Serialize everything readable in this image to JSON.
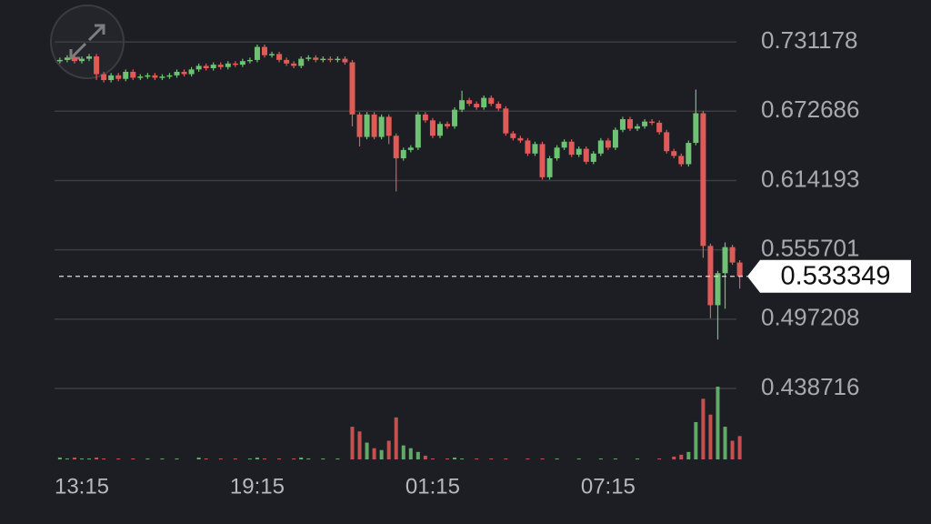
{
  "chart_data": {
    "type": "candlestick",
    "categories": [
      null,
      null,
      null,
      "13:15",
      null,
      null,
      null,
      null,
      null,
      null,
      null,
      null,
      null,
      null,
      null,
      null,
      null,
      null,
      null,
      null,
      null,
      null,
      null,
      null,
      null,
      null,
      null,
      "19:15",
      null,
      null,
      null,
      null,
      null,
      null,
      null,
      null,
      null,
      null,
      null,
      null,
      null,
      null,
      null,
      null,
      null,
      null,
      null,
      null,
      null,
      null,
      null,
      "01:15",
      null,
      null,
      null,
      null,
      null,
      null,
      null,
      null,
      null,
      null,
      null,
      null,
      null,
      null,
      null,
      null,
      null,
      null,
      null,
      null,
      null,
      null,
      null,
      "07:15",
      null,
      null,
      null,
      null,
      null,
      null,
      null,
      null,
      null,
      null,
      null,
      null,
      null,
      null,
      null,
      null,
      null,
      null
    ],
    "open": [
      0.715,
      0.716,
      0.718,
      0.715,
      0.717,
      0.719,
      0.704,
      0.699,
      0.703,
      0.7,
      0.706,
      0.701,
      0.702,
      0.703,
      0.701,
      0.702,
      0.703,
      0.706,
      0.704,
      0.708,
      0.711,
      0.709,
      0.712,
      0.71,
      0.713,
      0.712,
      0.715,
      0.716,
      0.727,
      0.72,
      0.721,
      0.716,
      0.713,
      0.711,
      0.717,
      0.718,
      0.716,
      0.717,
      0.716,
      0.717,
      0.714,
      0.67,
      0.651,
      0.67,
      0.651,
      0.668,
      0.652,
      0.633,
      0.64,
      0.642,
      0.67,
      0.665,
      0.652,
      0.662,
      0.66,
      0.674,
      0.682,
      0.679,
      0.676,
      0.684,
      0.679,
      0.675,
      0.654,
      0.65,
      0.648,
      0.637,
      0.645,
      0.617,
      0.633,
      0.642,
      0.647,
      0.636,
      0.641,
      0.63,
      0.637,
      0.648,
      0.642,
      0.657,
      0.666,
      0.658,
      0.66,
      0.664,
      0.663,
      0.655,
      0.639,
      0.635,
      0.628,
      0.646,
      0.671,
      0.559,
      0.509,
      0.536,
      0.558,
      0.545
    ],
    "high": [
      0.718,
      0.72,
      0.72,
      0.719,
      0.721,
      0.721,
      0.706,
      0.705,
      0.705,
      0.708,
      0.708,
      0.704,
      0.705,
      0.705,
      0.704,
      0.705,
      0.708,
      0.708,
      0.71,
      0.713,
      0.713,
      0.714,
      0.714,
      0.715,
      0.715,
      0.717,
      0.718,
      0.729,
      0.729,
      0.723,
      0.723,
      0.718,
      0.715,
      0.719,
      0.72,
      0.72,
      0.719,
      0.719,
      0.719,
      0.719,
      0.716,
      0.672,
      0.672,
      0.672,
      0.67,
      0.67,
      0.654,
      0.642,
      0.644,
      0.672,
      0.672,
      0.667,
      0.664,
      0.664,
      0.676,
      0.69,
      0.684,
      0.681,
      0.686,
      0.686,
      0.681,
      0.677,
      0.656,
      0.652,
      0.65,
      0.647,
      0.647,
      0.635,
      0.644,
      0.649,
      0.649,
      0.643,
      0.643,
      0.639,
      0.65,
      0.65,
      0.659,
      0.668,
      0.668,
      0.662,
      0.666,
      0.666,
      0.665,
      0.657,
      0.641,
      0.637,
      0.648,
      0.691,
      0.673,
      0.561,
      0.538,
      0.562,
      0.56,
      0.547
    ],
    "low": [
      0.713,
      0.714,
      0.713,
      0.713,
      0.715,
      0.699,
      0.697,
      0.697,
      0.698,
      0.698,
      0.699,
      0.699,
      0.7,
      0.699,
      0.699,
      0.7,
      0.701,
      0.702,
      0.702,
      0.706,
      0.707,
      0.707,
      0.708,
      0.708,
      0.71,
      0.71,
      0.713,
      0.714,
      0.718,
      0.718,
      0.714,
      0.711,
      0.709,
      0.709,
      0.715,
      0.714,
      0.714,
      0.714,
      0.714,
      0.712,
      0.66,
      0.643,
      0.649,
      0.649,
      0.649,
      0.645,
      0.605,
      0.631,
      0.638,
      0.64,
      0.663,
      0.65,
      0.65,
      0.658,
      0.658,
      0.672,
      0.677,
      0.674,
      0.674,
      0.677,
      0.673,
      0.652,
      0.648,
      0.646,
      0.635,
      0.635,
      0.615,
      0.615,
      0.631,
      0.64,
      0.634,
      0.634,
      0.628,
      0.628,
      0.635,
      0.64,
      0.64,
      0.655,
      0.656,
      0.656,
      0.658,
      0.661,
      0.653,
      0.637,
      0.633,
      0.626,
      0.626,
      0.644,
      0.549,
      0.498,
      0.48,
      0.506,
      0.543,
      0.523
    ],
    "close": [
      0.716,
      0.718,
      0.715,
      0.717,
      0.719,
      0.704,
      0.699,
      0.703,
      0.7,
      0.706,
      0.701,
      0.702,
      0.703,
      0.701,
      0.702,
      0.703,
      0.706,
      0.704,
      0.708,
      0.711,
      0.709,
      0.712,
      0.71,
      0.713,
      0.712,
      0.715,
      0.716,
      0.727,
      0.72,
      0.721,
      0.716,
      0.713,
      0.711,
      0.717,
      0.718,
      0.716,
      0.717,
      0.716,
      0.717,
      0.714,
      0.67,
      0.651,
      0.67,
      0.651,
      0.668,
      0.652,
      0.633,
      0.64,
      0.642,
      0.67,
      0.665,
      0.652,
      0.662,
      0.66,
      0.674,
      0.682,
      0.679,
      0.676,
      0.684,
      0.679,
      0.675,
      0.654,
      0.65,
      0.648,
      0.637,
      0.645,
      0.617,
      0.633,
      0.642,
      0.647,
      0.636,
      0.641,
      0.63,
      0.637,
      0.648,
      0.642,
      0.657,
      0.666,
      0.658,
      0.66,
      0.664,
      0.663,
      0.655,
      0.639,
      0.635,
      0.628,
      0.646,
      0.671,
      0.559,
      0.509,
      0.536,
      0.558,
      0.545,
      0.5333
    ],
    "volume": [
      2,
      1,
      2,
      1,
      1,
      2,
      1,
      0,
      1,
      0,
      1,
      0,
      1,
      0,
      1,
      0,
      1,
      0,
      0,
      2,
      1,
      0,
      1,
      0,
      1,
      0,
      1,
      2,
      1,
      0,
      1,
      0,
      1,
      2,
      1,
      0,
      1,
      0,
      1,
      0,
      35,
      30,
      18,
      12,
      10,
      20,
      45,
      15,
      12,
      8,
      4,
      1,
      0,
      1,
      2,
      1,
      0,
      1,
      0,
      1,
      0,
      1,
      0,
      0,
      1,
      0,
      1,
      0,
      1,
      0,
      0,
      1,
      0,
      0,
      1,
      0,
      1,
      0,
      0,
      1,
      0,
      0,
      1,
      0,
      3,
      5,
      8,
      40,
      65,
      48,
      78,
      35,
      20,
      25
    ],
    "up_color": "#6fc274",
    "down_color": "#e05a58",
    "ylim": [
      0.438716,
      0.7666
    ],
    "yticks": [
      0.731178,
      0.672686,
      0.614193,
      0.555701,
      0.497208,
      0.438716
    ],
    "last_price": 0.533349,
    "grid": true
  }
}
